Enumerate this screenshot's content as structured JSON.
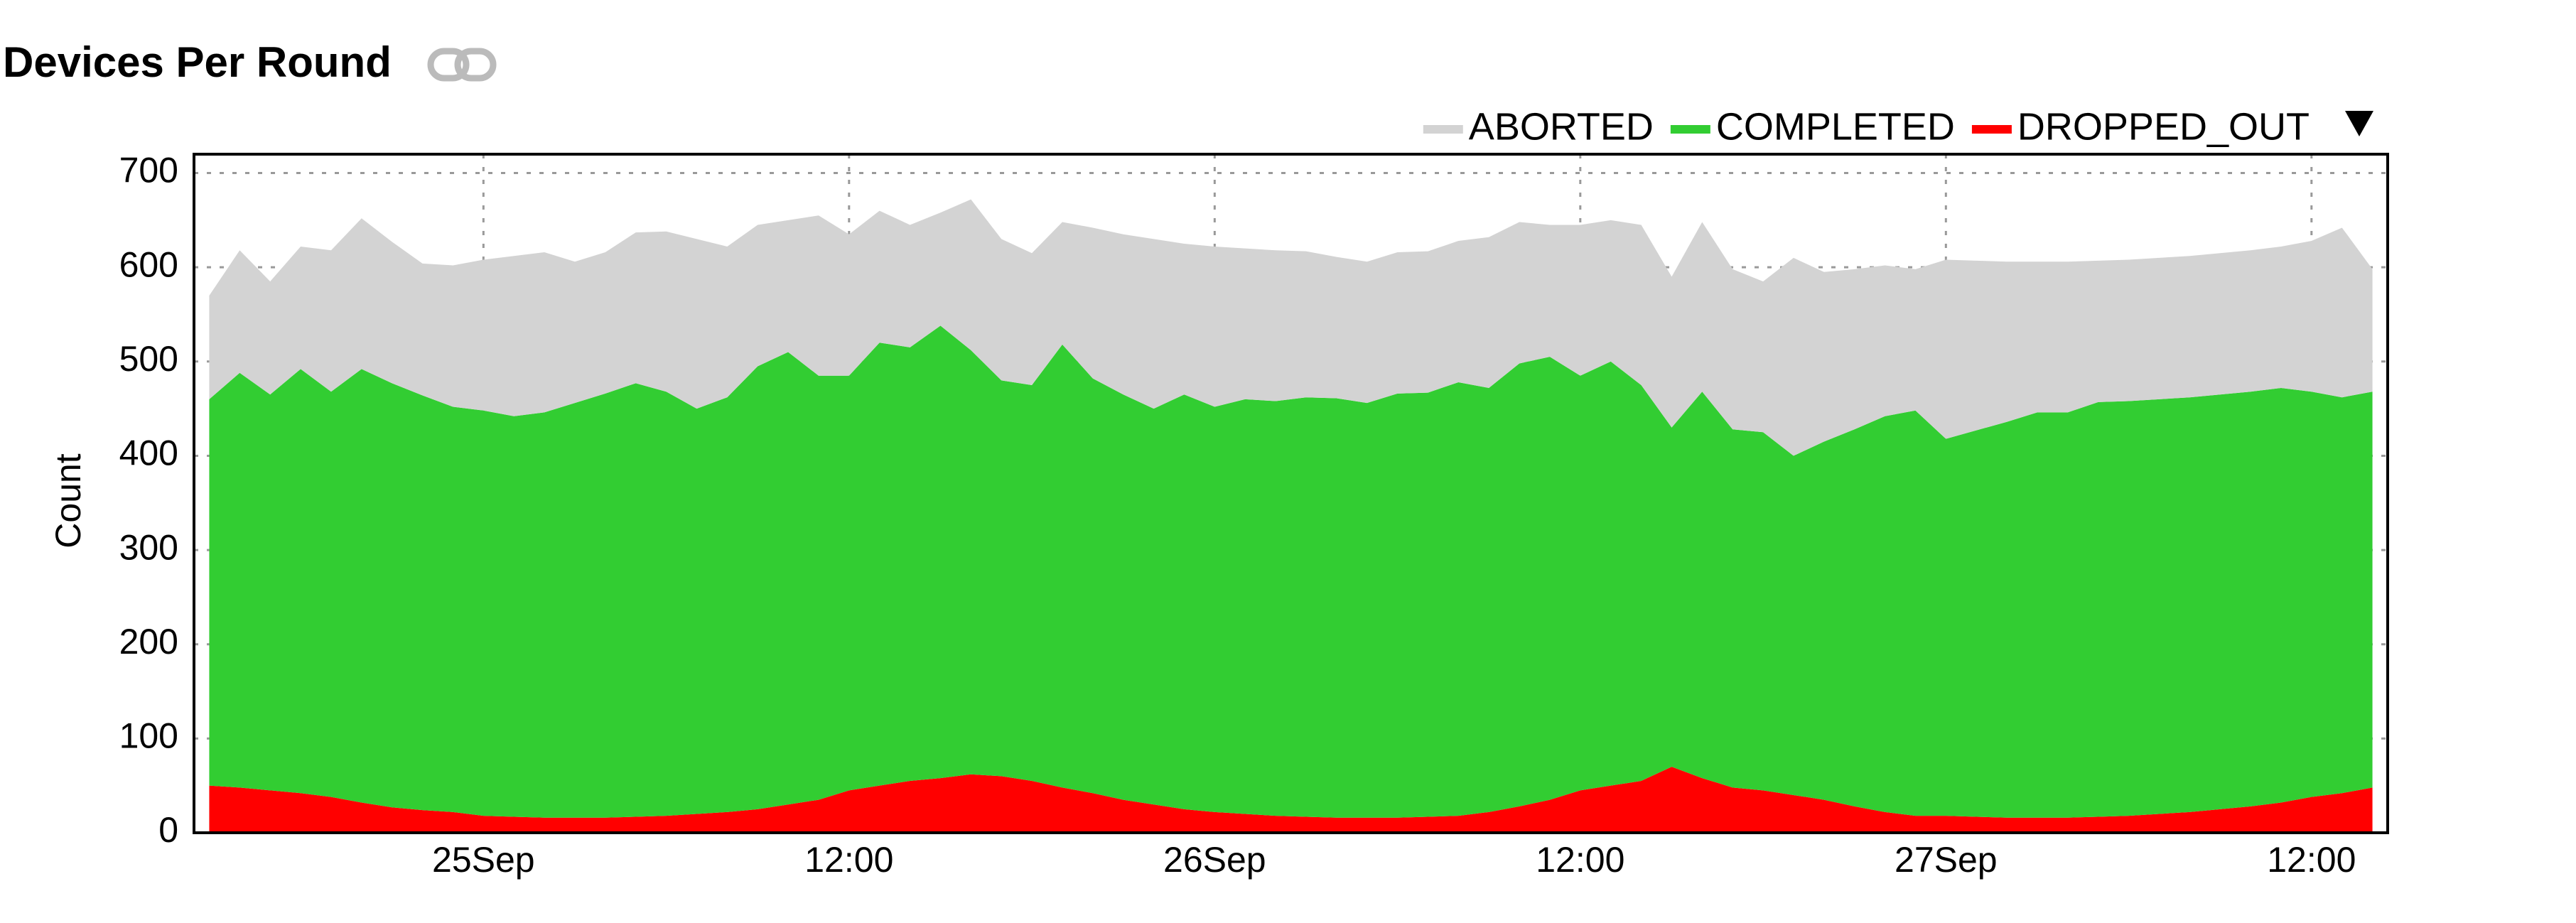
{
  "chart_data": {
    "type": "stacked_area",
    "title": "Devices Per Round",
    "ylabel": "Count",
    "x": [
      "24Sep 15:00",
      "24Sep 16:00",
      "24Sep 17:00",
      "24Sep 18:00",
      "24Sep 19:00",
      "24Sep 20:00",
      "24Sep 21:00",
      "24Sep 22:00",
      "24Sep 23:00",
      "25Sep 00:00",
      "25Sep 01:00",
      "25Sep 02:00",
      "25Sep 03:00",
      "25Sep 04:00",
      "25Sep 05:00",
      "25Sep 06:00",
      "25Sep 07:00",
      "25Sep 08:00",
      "25Sep 09:00",
      "25Sep 10:00",
      "25Sep 11:00",
      "25Sep 12:00",
      "25Sep 13:00",
      "25Sep 14:00",
      "25Sep 15:00",
      "25Sep 16:00",
      "25Sep 17:00",
      "25Sep 18:00",
      "25Sep 19:00",
      "25Sep 20:00",
      "25Sep 21:00",
      "25Sep 22:00",
      "25Sep 23:00",
      "26Sep 00:00",
      "26Sep 01:00",
      "26Sep 02:00",
      "26Sep 03:00",
      "26Sep 04:00",
      "26Sep 05:00",
      "26Sep 06:00",
      "26Sep 07:00",
      "26Sep 08:00",
      "26Sep 09:00",
      "26Sep 10:00",
      "26Sep 11:00",
      "26Sep 12:00",
      "26Sep 13:00",
      "26Sep 14:00",
      "26Sep 15:00",
      "26Sep 16:00",
      "26Sep 17:00",
      "26Sep 18:00",
      "26Sep 19:00",
      "26Sep 20:00",
      "26Sep 21:00",
      "26Sep 22:00",
      "26Sep 23:00",
      "27Sep 00:00",
      "27Sep 01:00",
      "27Sep 02:00",
      "27Sep 03:00",
      "27Sep 04:00",
      "27Sep 05:00",
      "27Sep 06:00",
      "27Sep 07:00",
      "27Sep 08:00",
      "27Sep 09:00",
      "27Sep 10:00",
      "27Sep 11:00",
      "27Sep 12:00",
      "27Sep 13:00",
      "27Sep 14:00"
    ],
    "series": [
      {
        "name": "ABORTED",
        "color": "#d3d3d3",
        "values": [
          110,
          130,
          120,
          130,
          150,
          160,
          150,
          140,
          150,
          160,
          170,
          170,
          150,
          150,
          160,
          170,
          180,
          160,
          150,
          140,
          170,
          150,
          140,
          130,
          120,
          160,
          150,
          140,
          130,
          160,
          170,
          180,
          160,
          170,
          160,
          160,
          155,
          150,
          150,
          150,
          150,
          150,
          160,
          150,
          140,
          160,
          150,
          170,
          160,
          180,
          170,
          160,
          210,
          180,
          170,
          160,
          150,
          190,
          180,
          170,
          160,
          160,
          150,
          150,
          150,
          150,
          150,
          150,
          150,
          160,
          180,
          130
        ]
      },
      {
        "name": "COMPLETED",
        "color": "#32cd32",
        "values": [
          410,
          440,
          420,
          450,
          430,
          460,
          450,
          440,
          430,
          430,
          425,
          430,
          440,
          450,
          460,
          450,
          430,
          440,
          470,
          480,
          450,
          440,
          470,
          460,
          480,
          450,
          420,
          420,
          470,
          440,
          430,
          420,
          440,
          430,
          440,
          440,
          445,
          445,
          440,
          450,
          450,
          460,
          450,
          470,
          470,
          440,
          450,
          420,
          360,
          410,
          380,
          380,
          360,
          380,
          400,
          420,
          430,
          400,
          410,
          420,
          430,
          430,
          440,
          440,
          440,
          440,
          440,
          440,
          440,
          430,
          420,
          420
        ]
      },
      {
        "name": "DROPPED_OUT",
        "color": "#ff0000",
        "values": [
          50,
          48,
          45,
          42,
          38,
          32,
          27,
          24,
          22,
          18,
          17,
          16,
          16,
          16,
          17,
          18,
          20,
          22,
          25,
          30,
          35,
          45,
          50,
          55,
          58,
          62,
          60,
          55,
          48,
          42,
          35,
          30,
          25,
          22,
          20,
          18,
          17,
          16,
          16,
          16,
          17,
          18,
          22,
          28,
          35,
          45,
          50,
          55,
          70,
          58,
          48,
          45,
          40,
          35,
          28,
          22,
          18,
          18,
          17,
          16,
          16,
          16,
          17,
          18,
          20,
          22,
          25,
          28,
          32,
          38,
          42,
          48
        ]
      }
    ],
    "xlim": [
      "24Sep 14:30",
      "27Sep 14:30"
    ],
    "xticks": [
      {
        "value": "25Sep 00:00",
        "label": "25Sep"
      },
      {
        "value": "25Sep 12:00",
        "label": "12:00"
      },
      {
        "value": "26Sep 00:00",
        "label": "26Sep"
      },
      {
        "value": "26Sep 12:00",
        "label": "12:00"
      },
      {
        "value": "27Sep 00:00",
        "label": "27Sep"
      },
      {
        "value": "27Sep 12:00",
        "label": "12:00"
      }
    ],
    "ylim": [
      0,
      720
    ],
    "yticks": [
      0,
      100,
      200,
      300,
      400,
      500,
      600,
      700
    ],
    "grid": true,
    "legend": "top-right"
  }
}
